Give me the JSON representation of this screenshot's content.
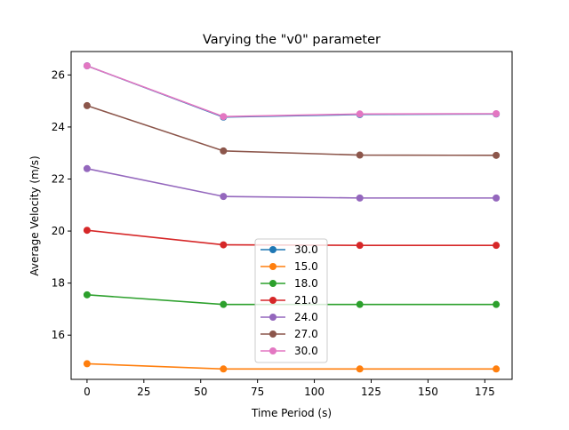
{
  "chart_data": {
    "type": "line",
    "title": "Varying the \"v0\" parameter",
    "xlabel": "Time Period (s)",
    "ylabel": "Average Velocity (m/s)",
    "xlim": [
      -7,
      187
    ],
    "ylim": [
      14.3,
      26.9
    ],
    "xticks": [
      0,
      25,
      50,
      75,
      100,
      125,
      150,
      175
    ],
    "yticks": [
      16,
      18,
      20,
      22,
      24,
      26
    ],
    "grid": false,
    "legend_position": "lower center",
    "x": [
      0,
      60,
      120,
      180
    ],
    "series": [
      {
        "name": "30.0",
        "color": "#1f77b4",
        "values": [
          26.35,
          24.38,
          24.48,
          24.5
        ]
      },
      {
        "name": "15.0",
        "color": "#ff7f0e",
        "values": [
          14.9,
          14.7,
          14.7,
          14.7
        ]
      },
      {
        "name": "18.0",
        "color": "#2ca02c",
        "values": [
          17.55,
          17.18,
          17.18,
          17.18
        ]
      },
      {
        "name": "21.0",
        "color": "#d62728",
        "values": [
          20.03,
          19.47,
          19.45,
          19.45
        ]
      },
      {
        "name": "24.0",
        "color": "#9467bd",
        "values": [
          22.4,
          21.33,
          21.27,
          21.27
        ]
      },
      {
        "name": "27.0",
        "color": "#8c564b",
        "values": [
          24.82,
          23.08,
          22.92,
          22.91
        ]
      },
      {
        "name": "30.0",
        "color": "#e377c2",
        "values": [
          26.35,
          24.4,
          24.5,
          24.51
        ]
      }
    ]
  }
}
